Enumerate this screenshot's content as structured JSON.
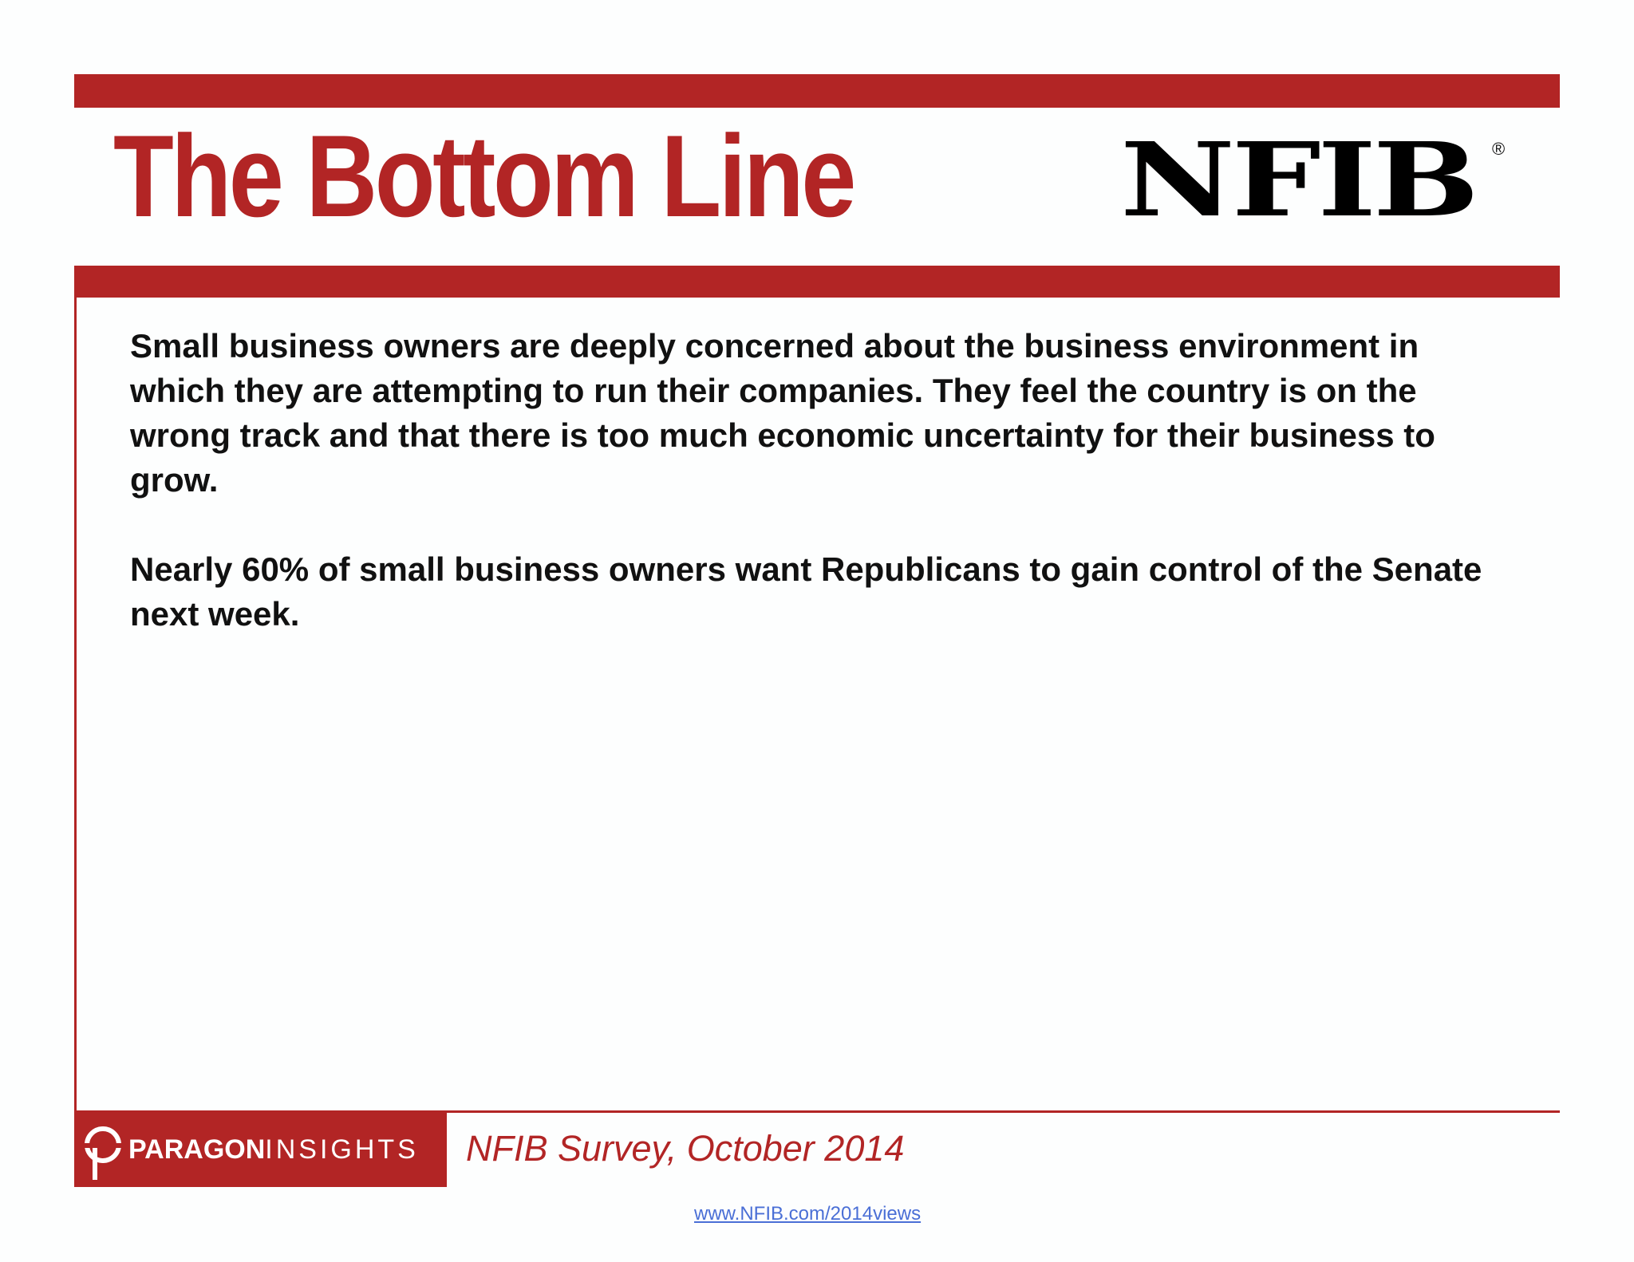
{
  "header": {
    "title": "The Bottom Line",
    "logo_text": "NFIB",
    "logo_reg_mark": "®"
  },
  "body": {
    "paragraphs": [
      "Small business owners are deeply concerned about the business environment in which they are attempting to run their companies. They feel the country is on the wrong track and that there is too much economic uncertainty for their business to grow.",
      "Nearly 60% of small business owners want Republicans to gain control of the Senate next week."
    ]
  },
  "footer": {
    "paragon_bold": "PARAGON",
    "paragon_light": "INSIGHTS",
    "source": "NFIB Survey, October 2014",
    "url": "www.NFIB.com/2014views"
  },
  "colors": {
    "brand_red": "#b22525",
    "text": "#111111",
    "link": "#4a6fd6"
  }
}
